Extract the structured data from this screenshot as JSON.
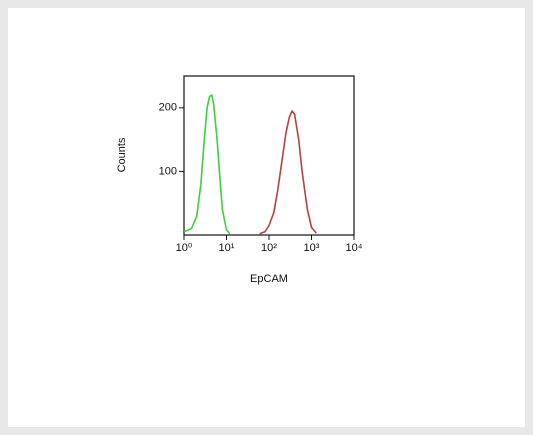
{
  "chart_data": {
    "type": "line",
    "x_label": "EpCAM",
    "y_label": "Counts",
    "xscale": "log",
    "xlim": [
      1,
      10000
    ],
    "ylim": [
      0,
      250
    ],
    "xticks": [
      {
        "value": 1,
        "label": "10⁰"
      },
      {
        "value": 10,
        "label": "10¹"
      },
      {
        "value": 100,
        "label": "10²"
      },
      {
        "value": 1000,
        "label": "10³"
      },
      {
        "value": 10000,
        "label": "10⁴"
      }
    ],
    "yticks": [
      100,
      200
    ],
    "series": [
      {
        "color": "#3ccf3c",
        "x": [
          1,
          1.5,
          2,
          2.5,
          3,
          3.5,
          4,
          4.5,
          5,
          6,
          7,
          8,
          10,
          12
        ],
        "values": [
          5,
          10,
          30,
          80,
          150,
          200,
          218,
          220,
          205,
          150,
          90,
          40,
          8,
          2
        ]
      },
      {
        "color": "#b8403f",
        "x": [
          60,
          80,
          100,
          130,
          160,
          200,
          250,
          300,
          350,
          400,
          500,
          600,
          800,
          1000,
          1300
        ],
        "values": [
          2,
          5,
          15,
          35,
          70,
          115,
          160,
          185,
          195,
          190,
          150,
          100,
          40,
          12,
          3
        ]
      }
    ]
  }
}
